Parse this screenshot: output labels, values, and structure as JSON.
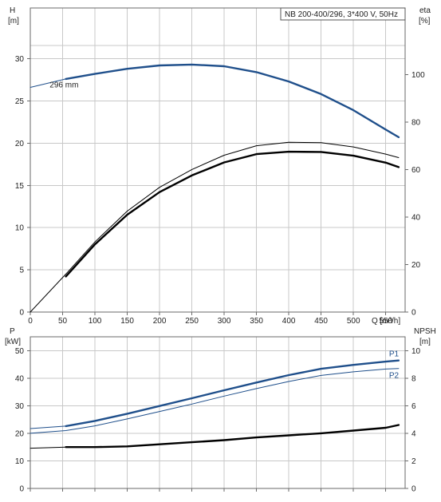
{
  "chart_data": [
    {
      "type": "line",
      "title": "NB 200-400/296, 3*400 V, 50Hz",
      "xlabel": "Q [m³/h]",
      "ylabel_left": [
        "H",
        "[m]"
      ],
      "ylabel_right": [
        "eta",
        "[%]"
      ],
      "xlim": [
        0,
        580
      ],
      "ylim_left": [
        0,
        36
      ],
      "ylim_right": [
        0,
        128
      ],
      "x_ticks": [
        "0",
        "50",
        "100",
        "150",
        "200",
        "250",
        "300",
        "350",
        "400",
        "450",
        "500",
        "550"
      ],
      "y_left_ticks": [
        "0",
        "5",
        "10",
        "15",
        "20",
        "25",
        "30"
      ],
      "y_right_ticks": [
        "0",
        "20",
        "40",
        "60",
        "80",
        "100"
      ],
      "grid": true,
      "annotations": [
        {
          "text": "296 mm",
          "x": 30,
          "y": 27
        }
      ],
      "series": [
        {
          "axis": "left",
          "color": "#1f4f8b",
          "style": "thin",
          "x": [
            0,
            55
          ],
          "y": [
            26.6,
            27.6
          ]
        },
        {
          "axis": "left",
          "color": "#1f4f8b",
          "style": "thick",
          "x": [
            55,
            100,
            150,
            200,
            250,
            300,
            350,
            400,
            450,
            500,
            550,
            570
          ],
          "y": [
            27.6,
            28.2,
            28.8,
            29.2,
            29.3,
            29.1,
            28.4,
            27.3,
            25.8,
            23.9,
            21.6,
            20.7
          ]
        },
        {
          "axis": "right",
          "color": "#000000",
          "style": "thin",
          "x": [
            0,
            55
          ],
          "y": [
            0,
            16
          ]
        },
        {
          "axis": "right",
          "color": "#000000",
          "style": "thin",
          "x": [
            55,
            100,
            150,
            200,
            250,
            300,
            350,
            400,
            450,
            500,
            550,
            570
          ],
          "y": [
            16,
            29.5,
            42.5,
            52.5,
            60,
            66,
            70,
            71.5,
            71.3,
            69.5,
            66.5,
            65
          ]
        },
        {
          "axis": "right",
          "color": "#000000",
          "style": "thick",
          "x": [
            55,
            100,
            150,
            200,
            250,
            300,
            350,
            400,
            450,
            500,
            550,
            570
          ],
          "y": [
            15,
            28.5,
            41,
            50.5,
            57.5,
            63,
            66.5,
            67.5,
            67.4,
            65.8,
            62.9,
            61
          ]
        }
      ]
    },
    {
      "type": "line",
      "xlim": [
        0,
        580
      ],
      "ylabel_left": [
        "P",
        "[kW]"
      ],
      "ylabel_right": [
        "NPSH",
        "[m]"
      ],
      "ylim_left": [
        0,
        55
      ],
      "ylim_right": [
        0,
        11
      ],
      "y_left_ticks": [
        "0",
        "10",
        "20",
        "30",
        "40",
        "50"
      ],
      "y_right_ticks": [
        "0",
        "2",
        "4",
        "6",
        "8",
        "10"
      ],
      "grid": true,
      "series": [
        {
          "name": "P1",
          "axis": "left",
          "color": "#1f4f8b",
          "style": "thin",
          "x": [
            0,
            55
          ],
          "y": [
            21.7,
            22.6
          ]
        },
        {
          "name": "P1",
          "axis": "left",
          "color": "#1f4f8b",
          "style": "thick",
          "x": [
            55,
            100,
            150,
            200,
            250,
            300,
            350,
            400,
            450,
            500,
            550,
            570
          ],
          "y": [
            22.6,
            24.5,
            27.1,
            29.9,
            32.7,
            35.6,
            38.4,
            41.1,
            43.4,
            44.8,
            46.0,
            46.4
          ]
        },
        {
          "name": "P2",
          "axis": "left",
          "color": "#1f4f8b",
          "style": "thin",
          "x": [
            0,
            55,
            100,
            150,
            200,
            250,
            300,
            350,
            400,
            450,
            500,
            550,
            570
          ],
          "y": [
            20.0,
            21.0,
            22.7,
            25.2,
            27.9,
            30.6,
            33.5,
            36.2,
            38.8,
            41.0,
            42.3,
            43.3,
            43.5
          ]
        },
        {
          "axis": "right",
          "color": "#000000",
          "style": "thin",
          "x": [
            0,
            55
          ],
          "y": [
            2.92,
            3.0
          ]
        },
        {
          "axis": "right",
          "color": "#000000",
          "style": "thick",
          "x": [
            55,
            100,
            150,
            200,
            250,
            300,
            350,
            400,
            450,
            500,
            550,
            570
          ],
          "y": [
            3.0,
            3.0,
            3.05,
            3.2,
            3.35,
            3.5,
            3.7,
            3.85,
            4.0,
            4.2,
            4.4,
            4.6
          ]
        }
      ]
    }
  ]
}
